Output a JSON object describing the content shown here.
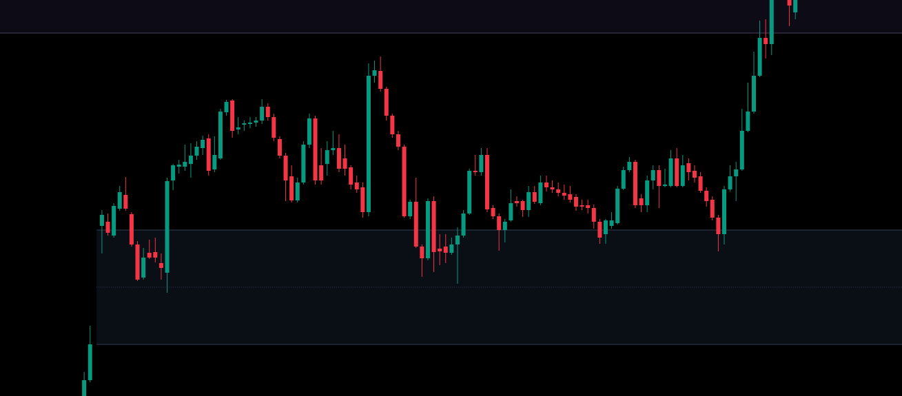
{
  "chart_data": {
    "type": "candlestick",
    "up_color": "#089981",
    "down_color": "#f23645",
    "xlim": [
      -14.2,
      138
    ],
    "ylim": [
      0,
      575
    ],
    "x": [
      0,
      1,
      3,
      4,
      5,
      6,
      7,
      8,
      9,
      10,
      11,
      12,
      13,
      14,
      15,
      16,
      17,
      18,
      19,
      20,
      21,
      22,
      23,
      24,
      25,
      26,
      27,
      28,
      29,
      30,
      31,
      32,
      33,
      34,
      35,
      36,
      37,
      38,
      39,
      40,
      41,
      42,
      43,
      44,
      45,
      46,
      47,
      48,
      49,
      50,
      51,
      52,
      53,
      54,
      55,
      56,
      57,
      58,
      59,
      60,
      61,
      62,
      63,
      64,
      65,
      66,
      67,
      68,
      69,
      70,
      71,
      72,
      73,
      74,
      75,
      76,
      77,
      78,
      79,
      80,
      81,
      82,
      83,
      84,
      85,
      86,
      87,
      88,
      89,
      90,
      91,
      92,
      93,
      94,
      95,
      96,
      97,
      98,
      99,
      100,
      101,
      102,
      103,
      104,
      105,
      106,
      107,
      108,
      109,
      110,
      111,
      112,
      113,
      114,
      115,
      116,
      119,
      120
    ],
    "open": [
      0,
      23,
      247,
      253,
      233,
      272,
      292,
      264,
      220,
      172,
      208,
      209,
      193,
      179,
      313,
      333,
      333,
      337,
      349,
      360,
      374,
      329,
      345,
      412,
      429,
      387,
      394,
      395,
      397,
      400,
      420,
      405,
      373,
      349,
      319,
      284,
      310,
      365,
      403,
      335,
      337,
      357,
      360,
      345,
      332,
      310,
      303,
      267,
      465,
      472,
      446,
      407,
      380,
      362,
      261,
      282,
      217,
      200,
      283,
      214,
      217,
      208,
      220,
      233,
      265,
      327,
      325,
      350,
      273,
      261,
      241,
      255,
      283,
      283,
      270,
      296,
      280,
      310,
      303,
      300,
      295,
      293,
      289,
      277,
      277,
      273,
      253,
      235,
      247,
      251,
      301,
      328,
      340,
      287,
      277,
      313,
      328,
      305,
      305,
      345,
      305,
      338,
      327,
      319,
      298,
      285,
      259,
      235,
      300,
      319,
      329,
      385,
      413,
      465,
      520,
      511,
      575,
      557
    ],
    "high": [
      35,
      102,
      270,
      265,
      280,
      305,
      318,
      267,
      225,
      215,
      227,
      230,
      207,
      317,
      337,
      343,
      365,
      367,
      370,
      378,
      380,
      377,
      417,
      430,
      431,
      405,
      400,
      405,
      405,
      431,
      425,
      410,
      377,
      353,
      335,
      317,
      370,
      410,
      407,
      360,
      370,
      385,
      380,
      365,
      335,
      320,
      310,
      483,
      487,
      493,
      449,
      410,
      385,
      365,
      285,
      317,
      220,
      287,
      290,
      235,
      235,
      230,
      245,
      270,
      330,
      350,
      360,
      360,
      277,
      265,
      257,
      300,
      290,
      285,
      305,
      305,
      320,
      320,
      313,
      310,
      307,
      305,
      293,
      285,
      285,
      278,
      257,
      257,
      267,
      305,
      333,
      347,
      343,
      293,
      320,
      335,
      335,
      330,
      357,
      360,
      350,
      345,
      335,
      325,
      303,
      290,
      263,
      305,
      335,
      340,
      417,
      455,
      500,
      545,
      547,
      575,
      575,
      575
    ],
    "low": [
      0,
      20,
      207,
      233,
      230,
      269,
      269,
      217,
      167,
      169,
      199,
      194,
      169,
      150,
      299,
      323,
      327,
      317,
      343,
      350,
      320,
      325,
      343,
      407,
      375,
      380,
      385,
      389,
      391,
      395,
      400,
      370,
      345,
      283,
      281,
      281,
      307,
      360,
      307,
      307,
      320,
      350,
      325,
      320,
      300,
      295,
      259,
      261,
      455,
      442,
      400,
      375,
      357,
      259,
      257,
      215,
      173,
      197,
      180,
      190,
      193,
      205,
      163,
      230,
      263,
      320,
      320,
      267,
      257,
      211,
      223,
      253,
      275,
      260,
      260,
      279,
      277,
      297,
      295,
      290,
      285,
      281,
      269,
      270,
      265,
      243,
      221,
      221,
      243,
      249,
      299,
      325,
      273,
      267,
      267,
      300,
      273,
      303,
      303,
      303,
      303,
      313,
      310,
      295,
      275,
      255,
      210,
      220,
      297,
      283,
      327,
      383,
      410,
      463,
      490,
      495,
      537,
      547
    ],
    "close": [
      23,
      75,
      263,
      237,
      276,
      296,
      272,
      220,
      169,
      201,
      201,
      201,
      186,
      312,
      335,
      336,
      340,
      349,
      362,
      372,
      327,
      350,
      413,
      427,
      385,
      390,
      396,
      397,
      400,
      420,
      405,
      375,
      349,
      313,
      284,
      310,
      365,
      403,
      313,
      313,
      357,
      360,
      330,
      330,
      307,
      300,
      267,
      465,
      473,
      446,
      407,
      380,
      362,
      261,
      282,
      217,
      200,
      283,
      209,
      210,
      208,
      220,
      233,
      265,
      327,
      325,
      350,
      271,
      261,
      241,
      253,
      280,
      280,
      270,
      296,
      282,
      310,
      303,
      300,
      295,
      291,
      285,
      275,
      275,
      273,
      253,
      230,
      255,
      255,
      301,
      328,
      340,
      277,
      277,
      313,
      328,
      305,
      307,
      345,
      305,
      335,
      325,
      317,
      298,
      283,
      259,
      235,
      300,
      319,
      329,
      385,
      413,
      465,
      520,
      511,
      575,
      567,
      575
    ],
    "zones": [
      {
        "top": 575,
        "bottom": 527
      },
      {
        "top": 241,
        "bottom": 75,
        "mid": 158,
        "start": 2.1
      }
    ]
  }
}
